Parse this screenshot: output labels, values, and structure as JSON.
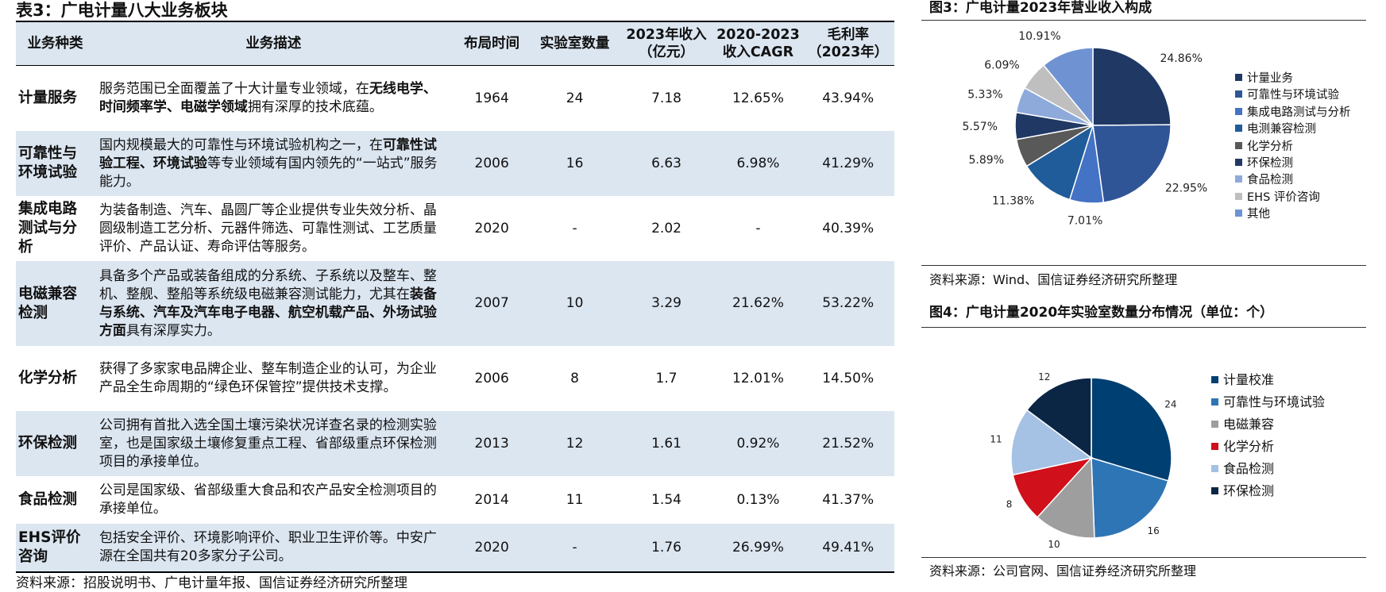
{
  "table": {
    "title": "表3：广电计量八大业务板块",
    "headers": [
      "业务种类",
      "业务描述",
      "布局时间",
      "实验室数量",
      "2023年收入\n（亿元）",
      "2020-2023\n收入CAGR",
      "毛利率\n（2023年）"
    ],
    "rows": [
      {
        "name": "计量服务",
        "desc": [
          [
            "服务范围已全面覆盖了十大计量专业领域，在",
            false
          ],
          [
            "无线电学、时间频率学、电磁学领域",
            true
          ],
          [
            "拥有深厚的技术底蕴。",
            false
          ]
        ],
        "year": "1964",
        "labs": "24",
        "revenue": "7.18",
        "cagr": "12.65%",
        "margin": "43.94%"
      },
      {
        "name": "可靠性与环境试验",
        "desc": [
          [
            "国内规模最大的可靠性与环境试验机构之一，在",
            false
          ],
          [
            "可靠性试验工程、环境试验",
            true
          ],
          [
            "等专业领域有国内领先的“一站式”服务能力。",
            false
          ]
        ],
        "year": "2006",
        "labs": "16",
        "revenue": "6.63",
        "cagr": "6.98%",
        "margin": "41.29%"
      },
      {
        "name": "集成电路测试与分析",
        "desc": [
          [
            "为装备制造、汽车、晶圆厂等企业提供专业失效分析、晶圆级制造工艺分析、元器件筛选、可靠性测试、工艺质量评价、产品认证、寿命评估等服务。",
            false
          ]
        ],
        "year": "2020",
        "labs": "-",
        "revenue": "2.02",
        "cagr": "-",
        "margin": "40.39%"
      },
      {
        "name": "电磁兼容检测",
        "desc": [
          [
            "具备多个产品或装备组成的分系统、子系统以及整车、整机、整舰、整船等系统级电磁兼容测试能力，尤其在",
            false
          ],
          [
            "装备与系统、汽车及汽车电子电器、航空机载产品、外场试验方面",
            true
          ],
          [
            "具有深厚实力。",
            false
          ]
        ],
        "year": "2007",
        "labs": "10",
        "revenue": "3.29",
        "cagr": "21.62%",
        "margin": "53.22%"
      },
      {
        "name": "化学分析",
        "desc": [
          [
            "获得了多家家电品牌企业、整车制造企业的认可，为企业产品全生命周期的“绿色环保管控”提供技术支撑。",
            false
          ]
        ],
        "year": "2006",
        "labs": "8",
        "revenue": "1.7",
        "cagr": "12.01%",
        "margin": "14.50%"
      },
      {
        "name": "环保检测",
        "desc": [
          [
            "公司拥有首批入选全国土壤污染状况详查名录的检测实验室，也是国家级土壤修复重点工程、省部级重点环保检测项目的承接单位。",
            false
          ]
        ],
        "year": "2013",
        "labs": "12",
        "revenue": "1.61",
        "cagr": "0.92%",
        "margin": "21.52%"
      },
      {
        "name": "食品检测",
        "desc": [
          [
            "公司是国家级、省部级重大食品和农产品安全检测项目的承接单位。",
            false
          ]
        ],
        "year": "2014",
        "labs": "11",
        "revenue": "1.54",
        "cagr": "0.13%",
        "margin": "41.37%"
      },
      {
        "name": "EHS评价咨询",
        "desc": [
          [
            "包括安全评价、环境影响评价、职业卫生评价等。中安广源在全国共有20多家分子公司。",
            false
          ]
        ],
        "year": "2020",
        "labs": "-",
        "revenue": "1.76",
        "cagr": "26.99%",
        "margin": "49.41%"
      }
    ],
    "source": "资料来源：招股说明书、广电计量年报、国信证券经济研究所整理"
  },
  "chart_data": [
    {
      "type": "pie",
      "title": "图3：广电计量2023年营业收入构成",
      "categories": [
        "计量业务",
        "可靠性与环境试验",
        "集成电路测试与分析",
        "电测兼容检测",
        "化学分析",
        "环保检测",
        "食品检测",
        "EHS 评价咨询",
        "其他"
      ],
      "values": [
        24.86,
        22.95,
        7.01,
        11.38,
        5.89,
        5.57,
        5.33,
        6.09,
        10.91
      ],
      "data_labels": [
        "24.86%",
        "22.95%",
        "7.01%",
        "11.38%",
        "5.89%",
        "5.57%",
        "5.33%",
        "6.09%",
        "10.91%"
      ],
      "colors": [
        "#1f3864",
        "#2f5597",
        "#4472c4",
        "#1f5c99",
        "#595959",
        "#203864",
        "#8eaadb",
        "#bfbfbf",
        "#6f93d2"
      ],
      "legend": "right",
      "source": "资料来源：Wind、国信证券经济研究所整理"
    },
    {
      "type": "pie",
      "title": "图4：广电计量2020年实验室数量分布情况（单位：个）",
      "categories": [
        "计量校准",
        "可靠性与环境试验",
        "电磁兼容",
        "化学分析",
        "食品检测",
        "环保检测"
      ],
      "values": [
        24,
        16,
        10,
        8,
        11,
        12
      ],
      "data_labels": [
        "24",
        "16",
        "10",
        "8",
        "11",
        "12"
      ],
      "colors": [
        "#003f72",
        "#2e75b6",
        "#9e9e9e",
        "#d0101b",
        "#a5c1e3",
        "#0b2545"
      ],
      "legend": "right",
      "source": "资料来源：公司官网、国信证券经济研究所整理"
    }
  ]
}
